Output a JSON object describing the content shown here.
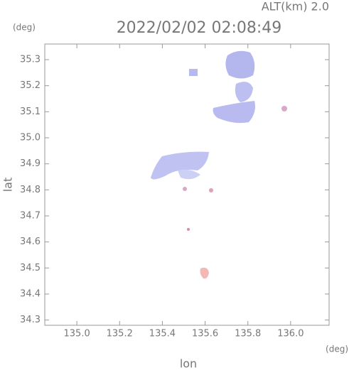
{
  "chart_data": {
    "type": "map",
    "altitude_label": "ALT(km) 2.0",
    "title": "2022/02/02 02:08:49",
    "y_unit": "(deg)",
    "x_unit": "(deg)",
    "ylabel": "lat",
    "xlabel": "lon",
    "xlim": [
      134.85,
      136.18
    ],
    "ylim": [
      34.28,
      35.36
    ],
    "xticks": [
      {
        "value": 135,
        "label": "135.0"
      },
      {
        "value": 135.2,
        "label": "135.2"
      },
      {
        "value": 135.4,
        "label": "135.4"
      },
      {
        "value": 135.6,
        "label": "135.6"
      },
      {
        "value": 135.8,
        "label": "135.8"
      },
      {
        "value": 136,
        "label": "136.0"
      }
    ],
    "yticks": [
      34.3,
      34.4,
      34.5,
      34.6,
      34.7,
      34.8,
      34.9,
      {
        "value": 35,
        "label": "35.0"
      },
      35.1,
      35.2,
      35.3
    ]
  }
}
